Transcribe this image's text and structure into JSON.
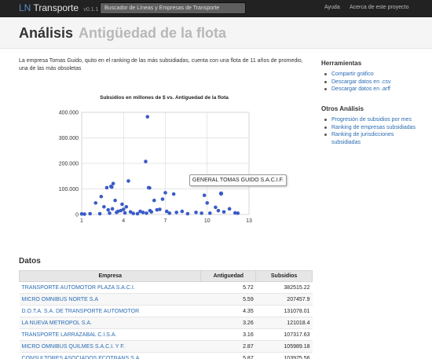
{
  "app": {
    "brand_part1": "LN",
    "brand_part2": "Transporte",
    "version": "v0.1.1",
    "search_placeholder": "Buscador de Líneas y Empresas de Transporte",
    "nav": [
      "Ayuda",
      "Acerca de este proyecto"
    ]
  },
  "page": {
    "title": "Análisis",
    "subtitle": "Antigüedad de la flota",
    "lead": "La empresa Tomas Guido, quito en el ranking de las más subsidiadas, cuenta con una flota de 11 años de promedio, una de las más obsoletas"
  },
  "sidebar": {
    "tools_heading": "Herramientas",
    "tools": [
      "Compartir gráfico",
      "Descargar datos en .csv",
      "Descargar datos en .arff"
    ],
    "other_heading": "Otros Análisis",
    "other": [
      "Progresión de subsidios por mes",
      "Ranking de empresas subsidiadas",
      "Ranking de jurisdicciones subsidiadas"
    ]
  },
  "tooltip": "GENERAL TOMAS GUIDO S.A.C.I.F.",
  "chart_data": {
    "type": "scatter",
    "title": "Subsidios en millones de $ vs. Antiguedad de la flota",
    "xlabel": "",
    "ylabel": "",
    "xlim": [
      1,
      13
    ],
    "ylim": [
      0,
      400000
    ],
    "x_ticks": [
      "1",
      "4",
      "7",
      "10",
      "13"
    ],
    "y_ticks": [
      "0",
      "100.000",
      "200.000",
      "300.000",
      "400.000"
    ],
    "color": "#3a5bc7",
    "highlight": {
      "x": 11,
      "y": 82000
    },
    "points": [
      [
        1.0,
        2000
      ],
      [
        1.2,
        1500
      ],
      [
        1.6,
        3000
      ],
      [
        2.0,
        45000
      ],
      [
        2.3,
        3000
      ],
      [
        2.4,
        70000
      ],
      [
        2.6,
        30000
      ],
      [
        2.8,
        105000
      ],
      [
        2.9,
        18000
      ],
      [
        3.0,
        5000
      ],
      [
        3.1,
        110000
      ],
      [
        3.16,
        107317
      ],
      [
        3.2,
        22000
      ],
      [
        3.26,
        121018
      ],
      [
        3.4,
        55000
      ],
      [
        3.5,
        8000
      ],
      [
        3.6,
        12000
      ],
      [
        3.8,
        15000
      ],
      [
        3.9,
        40000
      ],
      [
        4.0,
        20000
      ],
      [
        4.1,
        6000
      ],
      [
        4.2,
        30000
      ],
      [
        4.35,
        131078
      ],
      [
        4.5,
        10000
      ],
      [
        4.7,
        4000
      ],
      [
        5.0,
        3000
      ],
      [
        5.2,
        12000
      ],
      [
        5.4,
        8000
      ],
      [
        5.59,
        207457
      ],
      [
        5.65,
        5000
      ],
      [
        5.72,
        382515
      ],
      [
        5.8,
        105000
      ],
      [
        5.87,
        103975
      ],
      [
        5.9,
        15000
      ],
      [
        6.0,
        10000
      ],
      [
        6.2,
        55000
      ],
      [
        6.4,
        18000
      ],
      [
        6.6,
        20000
      ],
      [
        6.8,
        60000
      ],
      [
        7.0,
        85000
      ],
      [
        7.1,
        12000
      ],
      [
        7.3,
        5000
      ],
      [
        7.6,
        80000
      ],
      [
        7.8,
        8000
      ],
      [
        8.2,
        12000
      ],
      [
        8.6,
        3000
      ],
      [
        9.2,
        8000
      ],
      [
        9.6,
        5000
      ],
      [
        9.8,
        75000
      ],
      [
        10.0,
        45000
      ],
      [
        10.2,
        5000
      ],
      [
        10.6,
        28000
      ],
      [
        10.8,
        15000
      ],
      [
        11.0,
        82000
      ],
      [
        11.2,
        10000
      ],
      [
        11.6,
        22000
      ],
      [
        12.0,
        6000
      ],
      [
        12.2,
        5000
      ]
    ]
  },
  "datos": {
    "heading": "Datos",
    "columns": [
      "Empresa",
      "Antiguedad",
      "Subsidios"
    ],
    "rows": [
      [
        "TRANSPORTE AUTOMOTOR PLAZA S.A.C.I.",
        "5.72",
        "382515.22"
      ],
      [
        "MICRO OMNIBUS NORTE S.A",
        "5.59",
        "207457.9"
      ],
      [
        "D.O.T.A. S.A. DE TRANSPORTE AUTOMOTOR",
        "4.35",
        "131078.01"
      ],
      [
        "LA NUEVA METROPOL S.A.",
        "3.26",
        "121018.4"
      ],
      [
        "TRANSPORTE LARRAZABAL C.I.S.A.",
        "3.16",
        "107317.63"
      ],
      [
        "MICRO OMNIBUS QUILMES S.A.C.I. Y F.",
        "2.87",
        "105989.18"
      ],
      [
        "CONSULTORES ASOCIADOS ECOTRANS S.A.",
        "5.87",
        "103975.56"
      ]
    ]
  }
}
